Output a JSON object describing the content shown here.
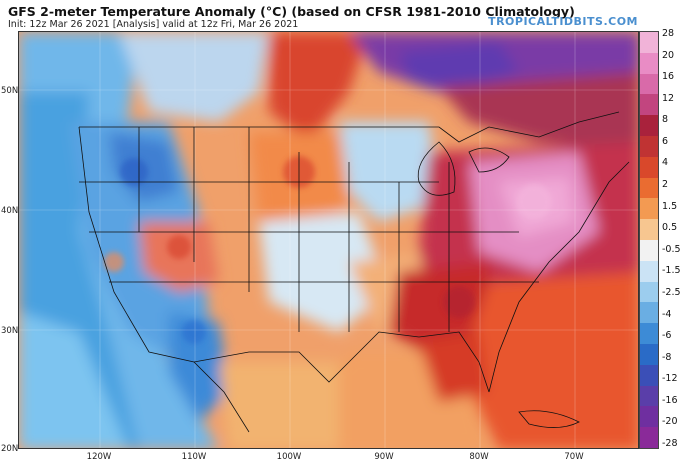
{
  "header": {
    "title": "GFS 2-meter Temperature Anomaly (°C) (based on CFSR 1981-2010 Climatology)",
    "subtitle": "Init: 12z Mar 26 2021   [Analysis]   valid at 12z Fri, Mar 26 2021",
    "brand": "TROPICALTIDBITS.COM"
  },
  "map": {
    "lat_labels": [
      "50N",
      "40N",
      "30N",
      "20N"
    ],
    "lon_labels": [
      "120W",
      "110W",
      "100W",
      "90W",
      "80W",
      "70W"
    ]
  },
  "colorbar": {
    "labels": [
      "28",
      "20",
      "16",
      "12",
      "8",
      "6",
      "4",
      "2",
      "1.5",
      "0.5",
      "-0.5",
      "-1.5",
      "-2.5",
      "-4",
      "-6",
      "-8",
      "-12",
      "-16",
      "-20",
      "-28"
    ],
    "colors": [
      "#f1b3d8",
      "#e98cc5",
      "#d96aa9",
      "#c2457f",
      "#a9223c",
      "#c03333",
      "#d9482b",
      "#ea6c31",
      "#f39a52",
      "#f7c690",
      "#f2f2f2",
      "#cbe3f5",
      "#9ccdee",
      "#6aaee3",
      "#3d8bd6",
      "#2a6bc7",
      "#3b4fb7",
      "#5a3ea9",
      "#6f2fa0",
      "#8a2a99"
    ]
  }
}
